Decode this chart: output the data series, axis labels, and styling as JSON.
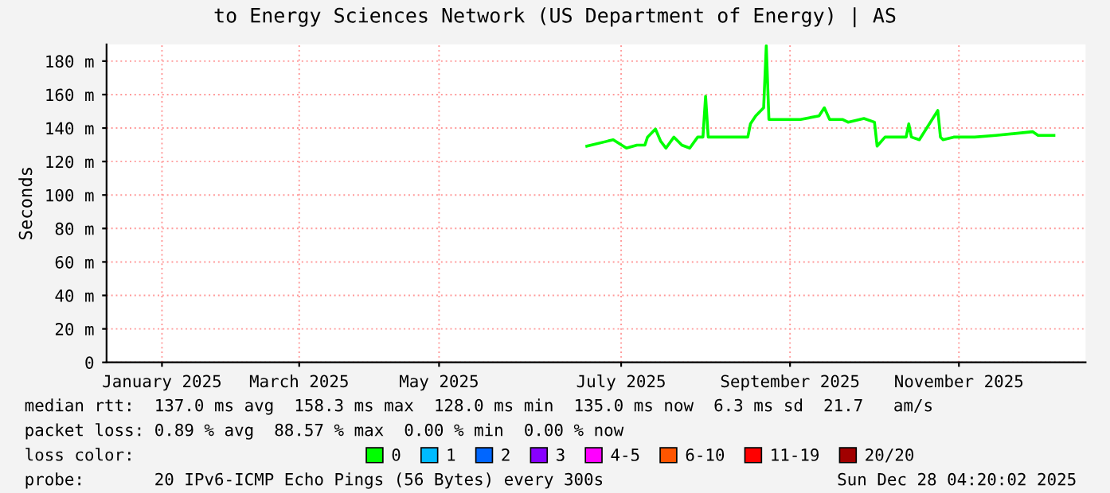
{
  "chart_data": {
    "type": "line",
    "title": "to Energy Sciences Network (US Department of Energy) | AS",
    "ylabel": "Seconds",
    "x": [
      "2025-07-04",
      "2025-07-14",
      "2025-07-19",
      "2025-07-23",
      "2025-07-26",
      "2025-07-27",
      "2025-07-30",
      "2025-08-01",
      "2025-08-03",
      "2025-08-06",
      "2025-08-09",
      "2025-08-12",
      "2025-08-15",
      "2025-08-17",
      "2025-08-18",
      "2025-08-19",
      "2025-08-28",
      "2025-09-03",
      "2025-09-04",
      "2025-09-06",
      "2025-09-09",
      "2025-09-10",
      "2025-09-11",
      "2025-09-23",
      "2025-09-30",
      "2025-10-02",
      "2025-10-04",
      "2025-10-09",
      "2025-10-11",
      "2025-10-17",
      "2025-10-21",
      "2025-10-22",
      "2025-10-25",
      "2025-11-02",
      "2025-11-03",
      "2025-11-04",
      "2025-11-07",
      "2025-11-14",
      "2025-11-15",
      "2025-11-16",
      "2025-11-20",
      "2025-11-28",
      "2025-12-06",
      "2025-12-20",
      "2025-12-22",
      "2025-12-28"
    ],
    "series": [
      {
        "name": "0",
        "color": "#00ff00",
        "values": [
          129.2,
          133.0,
          128,
          129.8,
          129.8,
          134.6,
          139.4,
          132.1,
          128,
          134.6,
          129.8,
          128,
          134.6,
          134.6,
          159.0,
          134.6,
          134.6,
          134.6,
          142.5,
          147.3,
          152.1,
          189.2,
          145.1,
          145.1,
          147.3,
          152.1,
          145.1,
          145.1,
          143.5,
          145.7,
          143.5,
          129.2,
          134.6,
          134.6,
          142.5,
          134.6,
          133.0,
          150.5,
          134.6,
          133.0,
          134.6,
          134.6,
          135.6,
          137.8,
          135.6,
          135.6
        ]
      },
      {
        "name": "1",
        "color": "#00bbff",
        "values": [
          null,
          null,
          null,
          null,
          null,
          null,
          null,
          null,
          null,
          null,
          null,
          null,
          null,
          null,
          null,
          null,
          null,
          null,
          null,
          null,
          null,
          null,
          null,
          null,
          null,
          null,
          null,
          null,
          null,
          null,
          null,
          null,
          null,
          null,
          null,
          null,
          null,
          null,
          null,
          null,
          null,
          null,
          null,
          null,
          null,
          null
        ]
      },
      {
        "name": "2",
        "color": "#0066ff",
        "values": [
          null,
          null,
          null,
          null,
          null,
          null,
          null,
          null,
          null,
          null,
          null,
          null,
          null,
          null,
          null,
          null,
          null,
          null,
          null,
          null,
          null,
          null,
          null,
          null,
          null,
          null,
          null,
          null,
          null,
          null,
          null,
          null,
          null,
          null,
          null,
          null,
          null,
          null,
          null,
          null,
          null,
          null,
          null,
          null,
          null,
          null
        ]
      },
      {
        "name": "3",
        "color": "#8800ff",
        "values": [
          null,
          null,
          null,
          null,
          null,
          null,
          null,
          null,
          null,
          null,
          null,
          null,
          null,
          null,
          null,
          null,
          null,
          null,
          null,
          null,
          null,
          null,
          null,
          null,
          null,
          null,
          null,
          null,
          null,
          null,
          null,
          null,
          null,
          null,
          null,
          null,
          null,
          null,
          null,
          null,
          null,
          null,
          null,
          null,
          null,
          null
        ]
      },
      {
        "name": "4-5",
        "color": "#ff00ff",
        "values": [
          null,
          null,
          null,
          null,
          null,
          null,
          null,
          null,
          null,
          null,
          null,
          null,
          null,
          null,
          null,
          null,
          null,
          null,
          null,
          null,
          null,
          null,
          null,
          null,
          null,
          null,
          null,
          null,
          null,
          null,
          null,
          null,
          null,
          null,
          null,
          null,
          null,
          null,
          null,
          null,
          null,
          null,
          null,
          null,
          null,
          null
        ]
      },
      {
        "name": "6-10",
        "color": "#ff5500",
        "values": [
          null,
          null,
          null,
          null,
          null,
          null,
          null,
          null,
          null,
          null,
          null,
          null,
          null,
          null,
          null,
          null,
          null,
          null,
          null,
          null,
          null,
          null,
          null,
          null,
          null,
          null,
          null,
          null,
          null,
          null,
          null,
          null,
          null,
          null,
          null,
          null,
          null,
          null,
          null,
          null,
          null,
          null,
          null,
          null,
          null,
          null
        ]
      },
      {
        "name": "11-19",
        "color": "#ff0000",
        "values": [
          null,
          null,
          null,
          null,
          null,
          null,
          null,
          null,
          null,
          null,
          null,
          null,
          null,
          null,
          null,
          null,
          null,
          null,
          null,
          null,
          null,
          null,
          null,
          null,
          null,
          null,
          null,
          null,
          null,
          null,
          null,
          null,
          null,
          null,
          null,
          null,
          null,
          null,
          null,
          null,
          null,
          null,
          null,
          null,
          null,
          null
        ]
      },
      {
        "name": "20/20",
        "color": "#a10000",
        "values": [
          null,
          null,
          null,
          null,
          null,
          null,
          null,
          null,
          null,
          null,
          null,
          null,
          null,
          null,
          null,
          null,
          null,
          null,
          null,
          null,
          null,
          null,
          null,
          null,
          null,
          null,
          null,
          null,
          null,
          null,
          null,
          null,
          null,
          null,
          null,
          null,
          null,
          null,
          null,
          null,
          null,
          null,
          null,
          null,
          null,
          null
        ]
      }
    ],
    "legend": "bottom",
    "legend_title": "loss color:",
    "xlim": [
      "2025-01-03",
      "2026-01-09"
    ],
    "xticks": [
      {
        "value": "2025-01-24",
        "label": "January 2025"
      },
      {
        "value": "2025-03-17",
        "label": "March 2025"
      },
      {
        "value": "2025-05-09",
        "label": "May 2025"
      },
      {
        "value": "2025-07-17",
        "label": "July 2025"
      },
      {
        "value": "2025-09-19",
        "label": "September 2025"
      },
      {
        "value": "2025-11-22",
        "label": "November 2025"
      }
    ],
    "ylim": [
      0,
      190
    ],
    "yticks": [
      0,
      {
        "value": 20,
        "label": "20 m"
      },
      {
        "value": 40,
        "label": "40 m"
      },
      {
        "value": 60,
        "label": "60 m"
      },
      {
        "value": 80,
        "label": "80 m"
      },
      {
        "value": 100,
        "label": "100 m"
      },
      {
        "value": 120,
        "label": "120 m"
      },
      {
        "value": 140,
        "label": "140 m"
      },
      {
        "value": 160,
        "label": "160 m"
      },
      {
        "value": 180,
        "label": "180 m"
      }
    ],
    "grid": true,
    "annotations": [
      "median rtt:  137.0 ms avg  158.3 ms max  128.0 ms min  135.0 ms now  6.3 ms sd  21.7   am/s",
      "packet loss: 0.89 % avg  88.57 % max  0.00 % min  0.00 % now",
      "probe:       20 IPv6-ICMP Echo Pings (56 Bytes) every 300s",
      "Sun Dec 28 04:20:02 2025"
    ]
  }
}
